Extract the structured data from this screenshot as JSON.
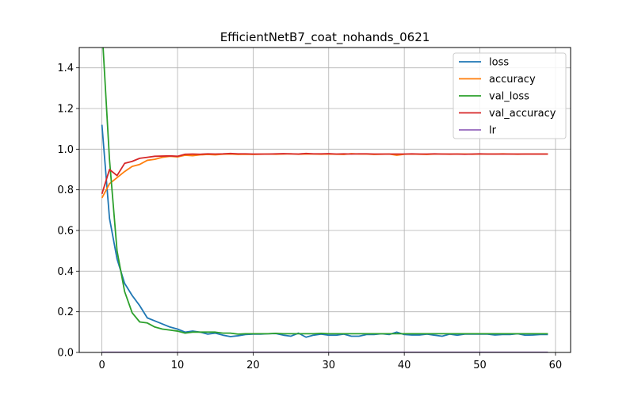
{
  "chart_data": {
    "type": "line",
    "title": "EfficientNetB7_coat_nohands_0621",
    "xlabel": "",
    "ylabel": "",
    "xlim": [
      -3,
      62
    ],
    "ylim": [
      0,
      1.5
    ],
    "xticks": [
      0,
      10,
      20,
      30,
      40,
      50,
      60
    ],
    "yticks": [
      0.0,
      0.2,
      0.4,
      0.6,
      0.8,
      1.0,
      1.2,
      1.4
    ],
    "ytick_labels": [
      "0.0",
      "0.2",
      "0.4",
      "0.6",
      "0.8",
      "1.0",
      "1.2",
      "1.4"
    ],
    "grid": true,
    "legend_position": "upper-right",
    "x": [
      0,
      1,
      2,
      3,
      4,
      5,
      6,
      7,
      8,
      9,
      10,
      11,
      12,
      13,
      14,
      15,
      16,
      17,
      18,
      19,
      20,
      21,
      22,
      23,
      24,
      25,
      26,
      27,
      28,
      29,
      30,
      31,
      32,
      33,
      34,
      35,
      36,
      37,
      38,
      39,
      40,
      41,
      42,
      43,
      44,
      45,
      46,
      47,
      48,
      49,
      50,
      51,
      52,
      53,
      54,
      55,
      56,
      57,
      58,
      59
    ],
    "series": [
      {
        "name": "loss",
        "color": "#1f77b4",
        "values": [
          1.12,
          0.66,
          0.46,
          0.34,
          0.28,
          0.23,
          0.17,
          0.155,
          0.14,
          0.125,
          0.115,
          0.1,
          0.105,
          0.1,
          0.09,
          0.095,
          0.085,
          0.078,
          0.082,
          0.088,
          0.09,
          0.09,
          0.092,
          0.093,
          0.085,
          0.08,
          0.095,
          0.075,
          0.085,
          0.09,
          0.085,
          0.085,
          0.09,
          0.08,
          0.08,
          0.088,
          0.088,
          0.092,
          0.088,
          0.1,
          0.088,
          0.086,
          0.086,
          0.09,
          0.085,
          0.08,
          0.09,
          0.085,
          0.09,
          0.09,
          0.09,
          0.09,
          0.086,
          0.088,
          0.088,
          0.092,
          0.085,
          0.086,
          0.088,
          0.088
        ]
      },
      {
        "name": "accuracy",
        "color": "#ff7f0e",
        "values": [
          0.76,
          0.83,
          0.86,
          0.89,
          0.915,
          0.925,
          0.945,
          0.95,
          0.96,
          0.965,
          0.962,
          0.97,
          0.968,
          0.972,
          0.974,
          0.972,
          0.975,
          0.976,
          0.974,
          0.975,
          0.974,
          0.975,
          0.976,
          0.975,
          0.976,
          0.977,
          0.975,
          0.976,
          0.976,
          0.975,
          0.976,
          0.975,
          0.974,
          0.978,
          0.976,
          0.976,
          0.974,
          0.975,
          0.976,
          0.97,
          0.975,
          0.976,
          0.975,
          0.974,
          0.976,
          0.976,
          0.975,
          0.976,
          0.976,
          0.975,
          0.976,
          0.976,
          0.976,
          0.977,
          0.976,
          0.975,
          0.976,
          0.976,
          0.976,
          0.976
        ]
      },
      {
        "name": "val_loss",
        "color": "#2ca02c",
        "values": [
          1.6,
          0.95,
          0.5,
          0.3,
          0.195,
          0.15,
          0.145,
          0.125,
          0.115,
          0.11,
          0.105,
          0.095,
          0.1,
          0.1,
          0.1,
          0.1,
          0.095,
          0.095,
          0.09,
          0.092,
          0.092,
          0.092,
          0.092,
          0.094,
          0.092,
          0.092,
          0.092,
          0.092,
          0.092,
          0.094,
          0.092,
          0.092,
          0.092,
          0.092,
          0.092,
          0.092,
          0.092,
          0.092,
          0.092,
          0.092,
          0.092,
          0.092,
          0.092,
          0.092,
          0.092,
          0.092,
          0.092,
          0.092,
          0.092,
          0.092,
          0.092,
          0.092,
          0.092,
          0.092,
          0.092,
          0.092,
          0.092,
          0.092,
          0.092,
          0.092
        ]
      },
      {
        "name": "val_accuracy",
        "color": "#d62728",
        "values": [
          0.78,
          0.9,
          0.87,
          0.93,
          0.94,
          0.955,
          0.96,
          0.965,
          0.966,
          0.967,
          0.965,
          0.975,
          0.976,
          0.975,
          0.977,
          0.976,
          0.977,
          0.979,
          0.977,
          0.977,
          0.976,
          0.976,
          0.976,
          0.977,
          0.978,
          0.977,
          0.976,
          0.979,
          0.977,
          0.977,
          0.978,
          0.976,
          0.977,
          0.976,
          0.977,
          0.977,
          0.976,
          0.976,
          0.976,
          0.976,
          0.976,
          0.977,
          0.976,
          0.976,
          0.977,
          0.976,
          0.976,
          0.976,
          0.975,
          0.976,
          0.977,
          0.976,
          0.976,
          0.976,
          0.976,
          0.976,
          0.976,
          0.976,
          0.976,
          0.976
        ]
      },
      {
        "name": "lr",
        "color": "#9467bd",
        "values": [
          0.001,
          0.001,
          0.001,
          0.001,
          0.001,
          0.001,
          0.001,
          0.001,
          0.001,
          0.001,
          0.001,
          0.001,
          0.001,
          0.001,
          0.001,
          0.001,
          0.001,
          0.001,
          0.001,
          0.001,
          0.001,
          0.001,
          0.001,
          0.001,
          0.001,
          0.001,
          0.001,
          0.001,
          0.001,
          0.001,
          0.001,
          0.001,
          0.001,
          0.001,
          0.001,
          0.001,
          0.001,
          0.001,
          0.001,
          0.001,
          0.001,
          0.001,
          0.001,
          0.001,
          0.001,
          0.001,
          0.001,
          0.001,
          0.001,
          0.001,
          0.001,
          0.001,
          0.001,
          0.001,
          0.001,
          0.001,
          0.001,
          0.001,
          0.001,
          0.001
        ]
      }
    ]
  }
}
